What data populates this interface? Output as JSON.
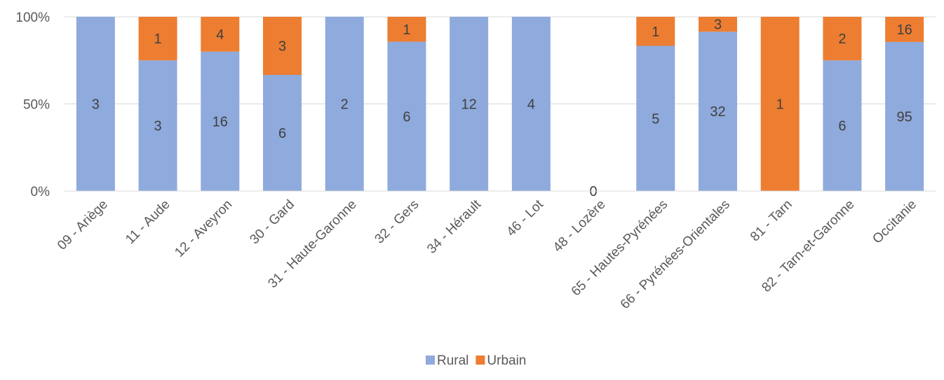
{
  "chart_data": {
    "type": "bar",
    "stacked": "percent",
    "title": "",
    "xlabel": "",
    "ylabel": "",
    "ylim": [
      0,
      100
    ],
    "y_ticks": [
      "0%",
      "50%",
      "100%"
    ],
    "grid": true,
    "legend_position": "bottom",
    "categories": [
      "09 - Ariège",
      "11 - Aude",
      "12 - Aveyron",
      "30 - Gard",
      "31 - Haute-Garonne",
      "32 - Gers",
      "34 - Hérault",
      "46 - Lot",
      "48 - Lozère",
      "65 - Hautes-Pyrénées",
      "66 - Pyrénées-Orientales",
      "81 - Tarn",
      "82 - Tarn-et-Garonne",
      "Occitanie"
    ],
    "series": [
      {
        "name": "Rural",
        "color": "#8FAADC",
        "values": [
          3,
          3,
          16,
          6,
          2,
          6,
          12,
          4,
          0,
          5,
          32,
          0,
          6,
          95
        ]
      },
      {
        "name": "Urbain",
        "color": "#ED7D31",
        "values": [
          0,
          1,
          4,
          3,
          0,
          1,
          0,
          0,
          0,
          1,
          3,
          1,
          2,
          16
        ]
      }
    ],
    "zero_total_label": "0"
  }
}
